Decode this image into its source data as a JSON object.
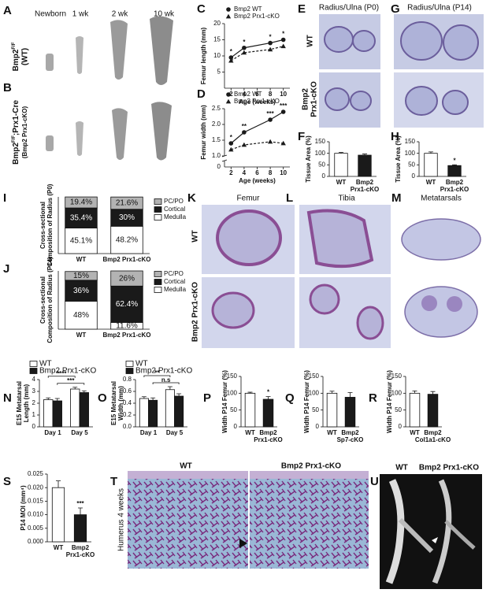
{
  "figure": {
    "A": {
      "label": "A",
      "ages": [
        "Newborn",
        "1 wk",
        "2 wk",
        "10 wk"
      ],
      "genotype": {
        "gene": "Bmp2",
        "sup": "F/F",
        "name": "(WT)"
      }
    },
    "B": {
      "label": "B",
      "genotype": {
        "gene": "Bmp2",
        "sup": "F/F",
        "rest": ";Prx1-Cre",
        "name": "(Bmp2 Prx1-cKO)"
      }
    },
    "E": {
      "label": "E",
      "title": "Radius/Ulna (P0)",
      "rows": [
        [
          "WT"
        ],
        [
          "Bmp2",
          "Prx1-cKO"
        ]
      ]
    },
    "G": {
      "label": "G",
      "title": "Radius/Ulna (P14)"
    },
    "K": {
      "label": "K",
      "title": "Femur",
      "rows": [
        "WT",
        "Bmp2 Prx1-cKO"
      ]
    },
    "L": {
      "label": "L",
      "title": "Tibia"
    },
    "M": {
      "label": "M",
      "title": "Metatarsals"
    },
    "T": {
      "label": "T",
      "columns": [
        "WT",
        "Bmp2 Prx1-cKO"
      ],
      "side": "Humerus 4 weeks"
    },
    "U": {
      "label": "U",
      "columns": [
        "WT",
        "Bmp2 Prx1-cKO"
      ]
    }
  },
  "chart_data": [
    {
      "label": "C",
      "type": "line",
      "ylabel": [
        "Femur length (mm)"
      ],
      "xlabel": "Age (weeks)",
      "x": [
        2,
        4,
        8,
        10
      ],
      "xlim": [
        1,
        11
      ],
      "xticks": [
        2,
        4,
        6,
        8,
        10
      ],
      "ylim": [
        0,
        20
      ],
      "yticks": [
        5,
        10,
        15,
        20
      ],
      "series": [
        {
          "name": "Bmp2 WT",
          "color": "#1a1a1a",
          "marker": "circle",
          "values": [
            9.5,
            12.5,
            14,
            15
          ]
        },
        {
          "name": "Bmp2 Prx1-cKO",
          "color": "#1a1a1a",
          "marker": "triangle",
          "values": [
            8.5,
            11,
            12,
            13
          ]
        }
      ],
      "annotations": [
        "*",
        "*",
        "*",
        "*"
      ]
    },
    {
      "label": "D",
      "type": "line",
      "ylabel": [
        "Femur width (mm)"
      ],
      "xlabel": "Age (weeks)",
      "x": [
        2,
        4,
        8,
        10
      ],
      "xlim": [
        1,
        11
      ],
      "xticks": [
        2,
        4,
        6,
        8,
        10
      ],
      "ylim": [
        1,
        2.5
      ],
      "yticks": [
        {
          "value": 1,
          "label": "1.0"
        },
        1.5,
        {
          "value": 2,
          "label": "2.0"
        },
        2.5
      ],
      "ybreak": 0,
      "series": [
        {
          "name": "Bmp2 WT",
          "color": "#1a1a1a",
          "marker": "circle",
          "values": [
            1.4,
            1.75,
            2.15,
            2.4
          ]
        },
        {
          "name": "Bmp2 Prx1-cKO",
          "color": "#1a1a1a",
          "marker": "triangle",
          "values": [
            1.2,
            1.35,
            1.45,
            1.4
          ]
        }
      ],
      "annotations": [
        "*",
        "**",
        "***",
        "***"
      ]
    },
    {
      "label": "F",
      "type": "bar",
      "ylabel": [
        "Tissue Area (%)"
      ],
      "ylim": [
        0,
        150
      ],
      "yticks": [
        0,
        50,
        100,
        150
      ],
      "categories": [
        [
          "WT"
        ],
        [
          "Bmp2",
          "Prx1-cKO"
        ]
      ],
      "values": [
        100,
        92
      ],
      "errors": [
        4,
        5
      ],
      "colors": [
        "#ffffff",
        "#1a1a1a"
      ]
    },
    {
      "label": "H",
      "type": "bar",
      "ylabel": [
        "Tissue Area (%)"
      ],
      "ylim": [
        0,
        150
      ],
      "yticks": [
        0,
        50,
        100,
        150
      ],
      "categories": [
        [
          "WT"
        ],
        [
          "Bmp2",
          "Prx1-cKO"
        ]
      ],
      "values": [
        100,
        47
      ],
      "errors": [
        6,
        3
      ],
      "colors": [
        "#ffffff",
        "#1a1a1a"
      ],
      "annotations": [
        null,
        "*"
      ]
    },
    {
      "label": "I",
      "type": "stacked_bar",
      "ylabel": [
        "Cross-sectional",
        "Composition of Radius (P0)"
      ],
      "ylim": [
        0,
        100
      ],
      "categories": [
        [
          "WT"
        ],
        [
          "Bmp2 Prx1-cKO"
        ]
      ],
      "series": [
        {
          "name": "Medulla",
          "color": "#ffffff",
          "values": [
            45.1,
            48.2
          ],
          "value_labels": [
            "45.1%",
            "48.2%"
          ]
        },
        {
          "name": "Cortical",
          "color": "#1a1a1a",
          "values": [
            35.4,
            30
          ],
          "value_labels": [
            "35.4%",
            "30%"
          ]
        },
        {
          "name": "PC/PO",
          "color": "#b3b3b3",
          "values": [
            19.4,
            21.6
          ],
          "value_labels": [
            "19.4%",
            "21.6%"
          ]
        }
      ]
    },
    {
      "label": "J",
      "type": "stacked_bar",
      "ylabel": [
        "Cross-sectional",
        "Composition of Radius (P14)"
      ],
      "ylim": [
        0,
        100
      ],
      "categories": [
        [
          "WT"
        ],
        [
          "Bmp2 Prx1-cKO"
        ]
      ],
      "series": [
        {
          "name": "Medulla",
          "color": "#ffffff",
          "values": [
            48,
            11.6
          ],
          "value_labels": [
            "48%",
            "11.6%"
          ]
        },
        {
          "name": "Cortical",
          "color": "#1a1a1a",
          "values": [
            36,
            62.4
          ],
          "value_labels": [
            "36%",
            "62.4%"
          ]
        },
        {
          "name": "PC/PO",
          "color": "#b3b3b3",
          "values": [
            15,
            26
          ],
          "value_labels": [
            "15%",
            "26%"
          ]
        }
      ]
    },
    {
      "label": "N",
      "type": "grouped_bar",
      "ylabel": [
        "E15 Metatarsal",
        "Length (mm)"
      ],
      "ylim": [
        0,
        4
      ],
      "yticks": [
        0,
        1,
        2,
        3,
        4
      ],
      "categories": [
        [
          "Day 1"
        ],
        [
          "Day 5"
        ]
      ],
      "series": [
        {
          "name": "WT",
          "color": "#ffffff",
          "values": [
            2.3,
            3.2
          ],
          "errors": [
            0.15,
            0.15
          ],
          "comparison": "****"
        },
        {
          "name": "Bmp2 Prx1-cKO",
          "color": "#1a1a1a",
          "values": [
            2.2,
            2.9
          ],
          "errors": [
            0.2,
            0.15
          ],
          "comparison": "***"
        }
      ]
    },
    {
      "label": "O",
      "type": "grouped_bar",
      "ylabel": [
        "E15 Metatarsal",
        "Width (mm)"
      ],
      "ylim": [
        0,
        0.8
      ],
      "yticks": [
        {
          "value": 0,
          "label": "0.0"
        },
        0.2,
        0.4,
        0.6,
        0.8
      ],
      "categories": [
        [
          "Day 1"
        ],
        [
          "Day 5"
        ]
      ],
      "series": [
        {
          "name": "WT",
          "color": "#ffffff",
          "values": [
            0.48,
            0.63
          ],
          "errors": [
            0.03,
            0.05
          ],
          "comparison": "**"
        },
        {
          "name": "Bmp2 Prx1-cKO",
          "color": "#1a1a1a",
          "values": [
            0.45,
            0.52
          ],
          "errors": [
            0.04,
            0.04
          ],
          "comparison": "n.s"
        }
      ]
    },
    {
      "label": "P",
      "type": "bar",
      "ylabel": [
        "Width P14 Femur (%)"
      ],
      "ylim": [
        0,
        150
      ],
      "yticks": [
        0,
        50,
        100,
        150
      ],
      "categories": [
        [
          "WT"
        ],
        [
          "Bmp2",
          "Prx1-cKO"
        ]
      ],
      "values": [
        100,
        82
      ],
      "errors": [
        3,
        8
      ],
      "colors": [
        "#ffffff",
        "#1a1a1a"
      ],
      "annotations": [
        null,
        "*"
      ]
    },
    {
      "label": "Q",
      "type": "bar",
      "ylabel": [
        "Width P14 Femur (%)"
      ],
      "ylim": [
        0,
        150
      ],
      "yticks": [
        0,
        50,
        100,
        150
      ],
      "categories": [
        [
          "WT"
        ],
        [
          "Bmp2",
          "Sp7-cKO"
        ]
      ],
      "values": [
        100,
        88
      ],
      "errors": [
        6,
        14
      ],
      "colors": [
        "#ffffff",
        "#1a1a1a"
      ]
    },
    {
      "label": "R",
      "type": "bar",
      "ylabel": [
        "Width P14 Femur (%)"
      ],
      "ylim": [
        0,
        150
      ],
      "yticks": [
        0,
        50,
        100,
        150
      ],
      "categories": [
        [
          "WT"
        ],
        [
          "Bmp2",
          "Col1a1-cKO"
        ]
      ],
      "values": [
        100,
        97
      ],
      "errors": [
        7,
        8
      ],
      "colors": [
        "#ffffff",
        "#1a1a1a"
      ]
    },
    {
      "label": "S",
      "type": "bar",
      "ylabel": [
        "P14 MOI (mm⁴)"
      ],
      "ylim": [
        0,
        0.025
      ],
      "yticks": [
        {
          "value": 0,
          "label": "0.000"
        },
        {
          "value": 0.005,
          "label": "0.005"
        },
        {
          "value": 0.01,
          "label": "0.010"
        },
        {
          "value": 0.015,
          "label": "0.015"
        },
        {
          "value": 0.02,
          "label": "0.020"
        },
        {
          "value": 0.025,
          "label": "0.025"
        }
      ],
      "categories": [
        [
          "WT"
        ],
        [
          "Bmp2",
          "Prx1-cKO"
        ]
      ],
      "values": [
        0.02,
        0.01
      ],
      "errors": [
        0.0025,
        0.0025
      ],
      "colors": [
        "#ffffff",
        "#1a1a1a"
      ],
      "annotations": [
        null,
        "***"
      ]
    }
  ]
}
